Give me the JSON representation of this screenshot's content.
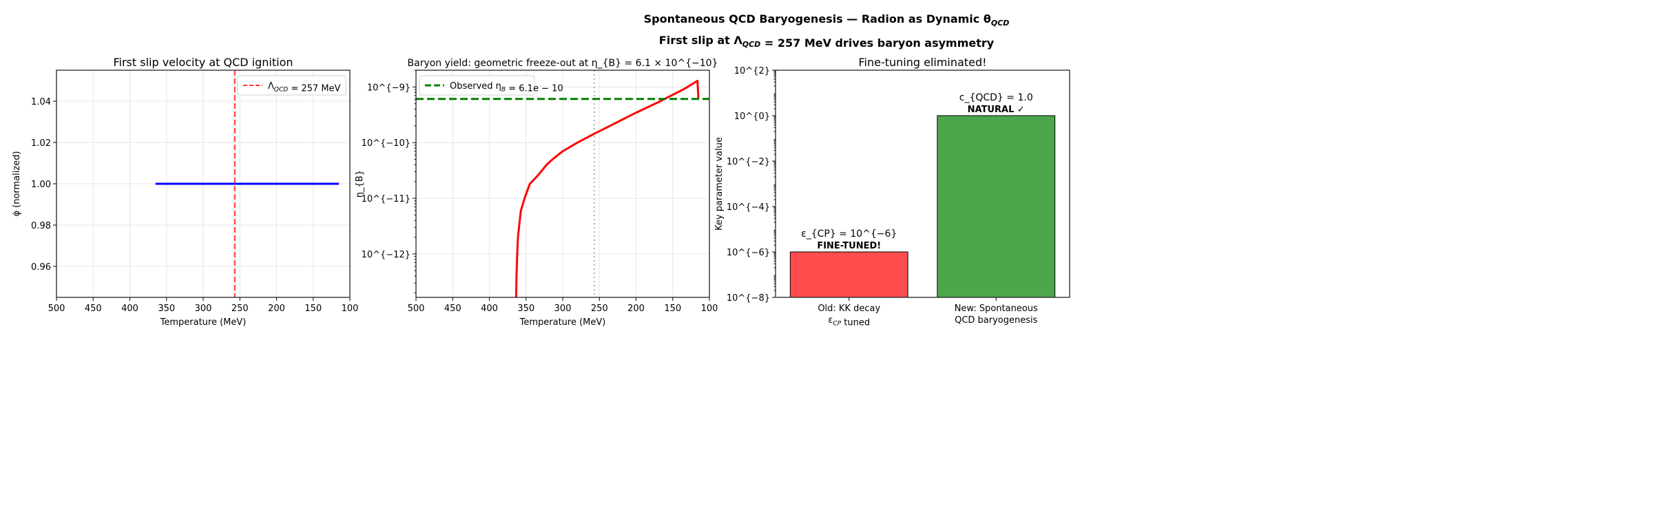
{
  "suptitle": {
    "line1": "Spontaneous QCD Baryogenesis — Radion as Dynamic θ_{QCD}",
    "line2": "First slip at Λ_{QCD} = 257 MeV drives baryon asymmetry"
  },
  "chart_data": [
    {
      "type": "line",
      "title": "First slip velocity at QCD ignition",
      "xlabel": "Temperature (MeV)",
      "ylabel": "φ̇ (normalized)",
      "xlim": [
        500,
        100
      ],
      "ylim": [
        0.945,
        1.055
      ],
      "xticks": [
        500,
        450,
        400,
        350,
        300,
        250,
        200,
        150,
        100
      ],
      "yticks": [
        0.96,
        0.98,
        1.0,
        1.02,
        1.04
      ],
      "ytick_labels": [
        "0.96",
        "0.98",
        "1.00",
        "1.02",
        "1.04"
      ],
      "grid": true,
      "series": [
        {
          "x": [
            365,
            115
          ],
          "y": [
            1.0,
            1.0
          ],
          "color": "#0000ff",
          "style": "solid"
        }
      ],
      "vlines": [
        {
          "x": 257,
          "color": "#ff3333",
          "style": "dashed",
          "name": "Λ_{QCD} = 257 MeV"
        }
      ],
      "legend": "top-right"
    },
    {
      "type": "line",
      "title": "Baryon yield: geometric freeze-out at η_{B} = 6.1 × 10^{−10}",
      "xlabel": "Temperature (MeV)",
      "ylabel": "η_{B}",
      "xlim": [
        500,
        100
      ],
      "ylim": [
        1.66e-13,
        2e-09
      ],
      "yscale": "log",
      "xticks": [
        500,
        450,
        400,
        350,
        300,
        250,
        200,
        150,
        100
      ],
      "yticks": [
        1e-12,
        1e-11,
        1e-10,
        1e-09
      ],
      "ytick_labels": [
        "10^{−12}",
        "10^{−11}",
        "10^{−10}",
        "10^{−9}"
      ],
      "grid": true,
      "series": [
        {
          "color": "#ff0000",
          "x": [
            363.4,
            363,
            362,
            361,
            359.6,
            357,
            352,
            345,
            333.5,
            322,
            314,
            300,
            280,
            256.7,
            229.4,
            200,
            167.5,
            159,
            133.7,
            116.3,
            115
          ],
          "y": [
            1.66e-13,
            4e-13,
            1e-12,
            2e-12,
            3e-12,
            6e-12,
            1e-11,
            1.8e-11,
            2.6e-11,
            4e-11,
            5e-11,
            7e-11,
            1e-10,
            1.45e-10,
            2.2e-10,
            3.45e-10,
            5.5e-10,
            6.3e-10,
            9.3e-10,
            1.29e-09,
            6.3e-10
          ]
        }
      ],
      "hlines": [
        {
          "y": 6.1e-10,
          "color": "#008000",
          "style": "dashed",
          "name": "Observed η_{B} = 6.1e − 10"
        }
      ],
      "vlines": [
        {
          "x": 257,
          "color": "#b0b0b0",
          "style": "dotted"
        }
      ],
      "legend": "top-left"
    },
    {
      "type": "bar",
      "title": "Fine-tuning eliminated!",
      "ylabel": "Key parameter value",
      "yscale": "log",
      "ylim": [
        1e-08,
        100
      ],
      "yticks": [
        1e-08,
        1e-06,
        0.0001,
        0.01,
        1,
        100
      ],
      "ytick_labels": [
        "10^{−8}",
        "10^{−6}",
        "10^{−4}",
        "10^{−2}",
        "10^{0}",
        "10^{2}"
      ],
      "categories": [
        [
          "Old: KK decay",
          "ε_{CP} tuned"
        ],
        [
          "New: Spontaneous",
          "QCD baryogenesis"
        ]
      ],
      "values": [
        1e-06,
        1.0
      ],
      "colors": [
        "#ff4c4c",
        "#4ca64c"
      ],
      "annotations": [
        {
          "line1": "ε_{CP} = 10^{−6}",
          "line2": "FINE-TUNED!",
          "color": "#ff0000"
        },
        {
          "line1": "c_{QCD} = 1.0",
          "line2": "NATURAL ✓",
          "color": "#006400"
        }
      ]
    }
  ]
}
